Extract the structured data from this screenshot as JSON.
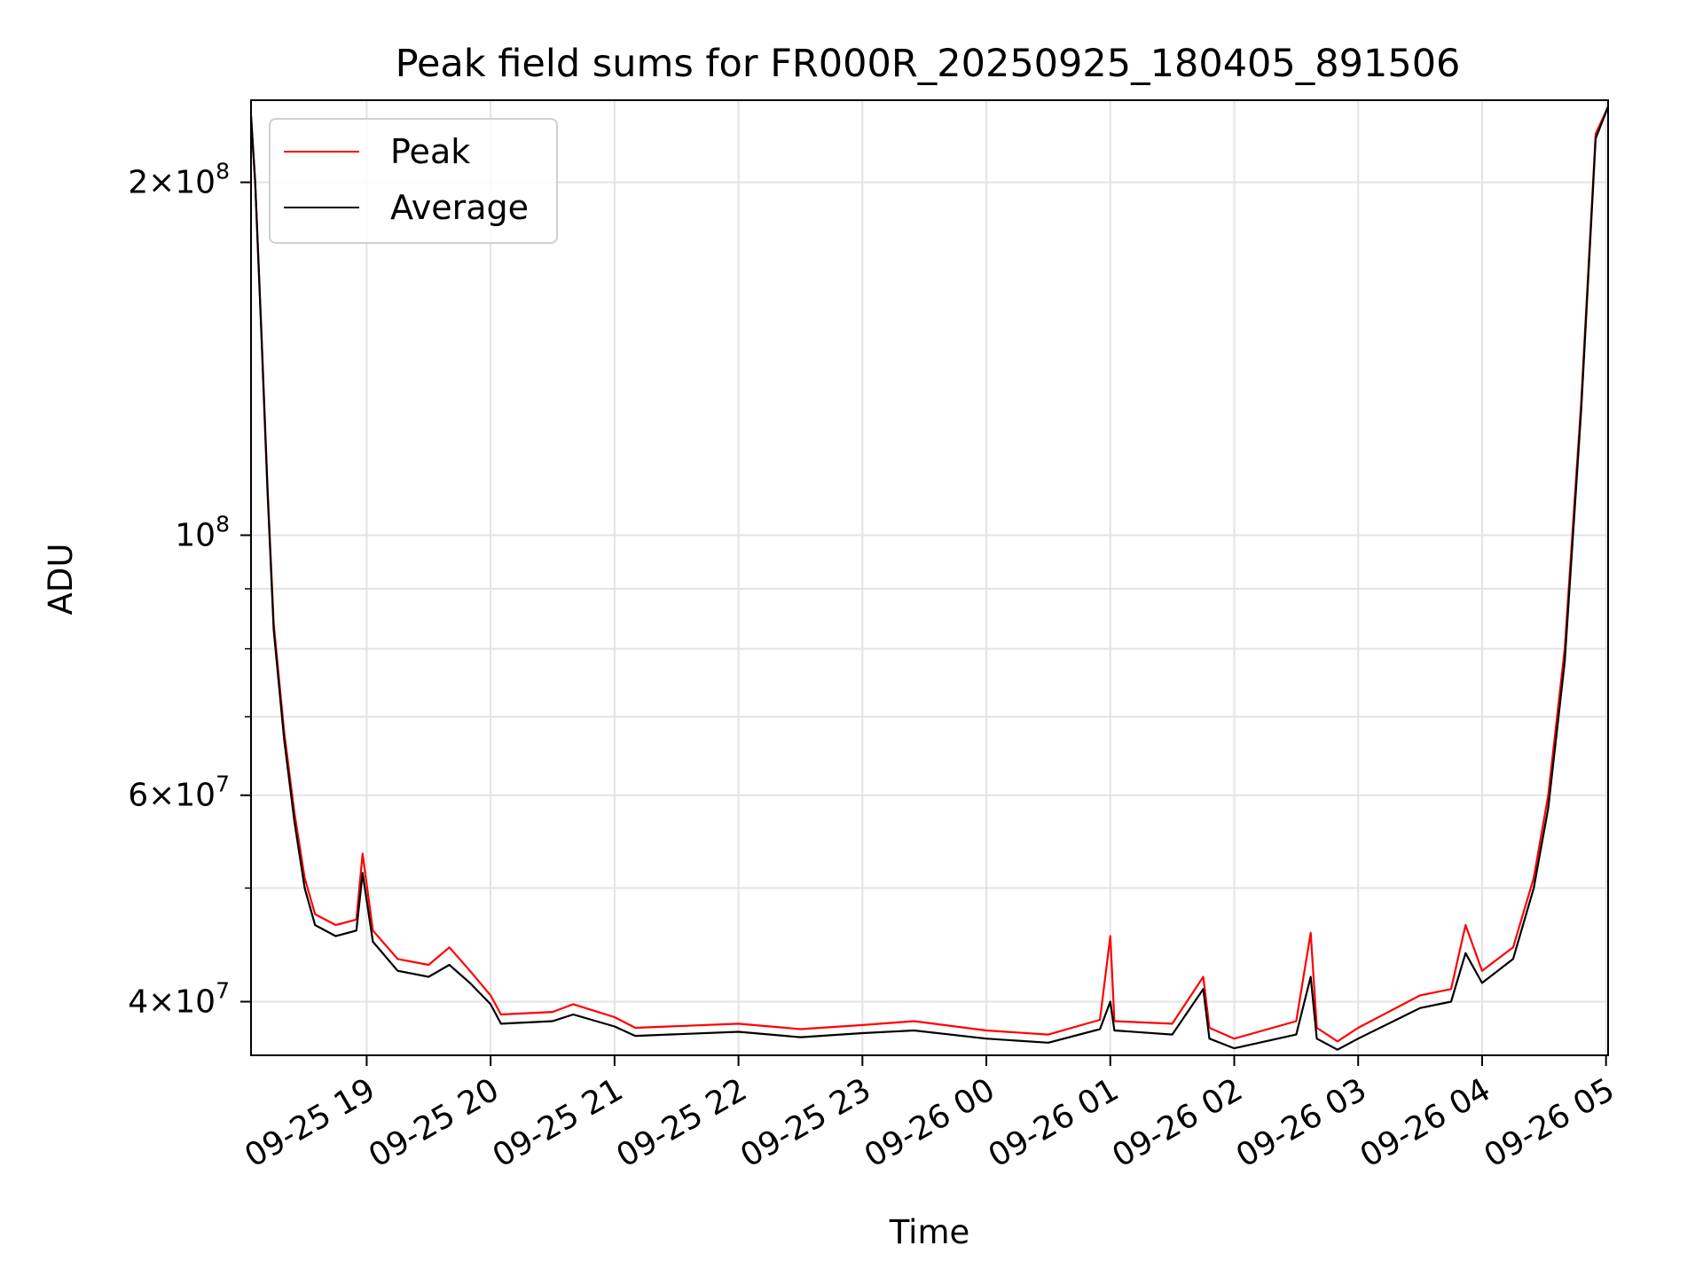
{
  "chart_data": {
    "type": "line",
    "title": "Peak field sums for FR000R_20250925_180405_891506",
    "xlabel": "Time",
    "ylabel": "ADU",
    "yscale": "log",
    "grid": true,
    "legend_position": "top-left",
    "xlim": [
      "2025-09-25 18:04",
      "2025-09-26 05:01"
    ],
    "ylim": [
      36000000,
      235000000
    ],
    "x_ticks": [
      "09-25 19",
      "09-25 20",
      "09-25 21",
      "09-25 22",
      "09-25 23",
      "09-26 00",
      "09-26 01",
      "09-26 02",
      "09-26 03",
      "09-26 04",
      "09-26 05"
    ],
    "y_ticks": [
      {
        "value": 40000000,
        "label_mantissa": "4×10",
        "label_exp": "7"
      },
      {
        "value": 60000000,
        "label_mantissa": "6×10",
        "label_exp": "7"
      },
      {
        "value": 100000000,
        "label_mantissa": "10",
        "label_exp": "8"
      },
      {
        "value": 200000000,
        "label_mantissa": "2×10",
        "label_exp": "8"
      }
    ],
    "series": [
      {
        "name": "Peak",
        "color": "#ff0000",
        "points": [
          [
            "2025-09-25 18:04",
            228000000
          ],
          [
            "2025-09-25 18:06",
            200000000
          ],
          [
            "2025-09-25 18:09",
            150000000
          ],
          [
            "2025-09-25 18:12",
            110000000
          ],
          [
            "2025-09-25 18:15",
            84000000
          ],
          [
            "2025-09-25 18:20",
            68000000
          ],
          [
            "2025-09-25 18:25",
            58000000
          ],
          [
            "2025-09-25 18:30",
            51000000
          ],
          [
            "2025-09-25 18:35",
            47500000
          ],
          [
            "2025-09-25 18:45",
            46500000
          ],
          [
            "2025-09-25 18:55",
            47000000
          ],
          [
            "2025-09-25 18:58",
            53500000
          ],
          [
            "2025-09-25 19:03",
            46000000
          ],
          [
            "2025-09-25 19:15",
            43500000
          ],
          [
            "2025-09-25 19:30",
            43000000
          ],
          [
            "2025-09-25 19:40",
            44500000
          ],
          [
            "2025-09-25 19:50",
            42500000
          ],
          [
            "2025-09-25 20:00",
            40500000
          ],
          [
            "2025-09-25 20:05",
            39000000
          ],
          [
            "2025-09-25 20:30",
            39200000
          ],
          [
            "2025-09-25 20:40",
            39800000
          ],
          [
            "2025-09-25 21:00",
            38800000
          ],
          [
            "2025-09-25 21:10",
            38000000
          ],
          [
            "2025-09-25 22:00",
            38300000
          ],
          [
            "2025-09-25 22:30",
            37900000
          ],
          [
            "2025-09-25 23:00",
            38200000
          ],
          [
            "2025-09-25 23:25",
            38500000
          ],
          [
            "2025-09-26 00:00",
            37800000
          ],
          [
            "2025-09-26 00:30",
            37500000
          ],
          [
            "2025-09-26 00:55",
            38600000
          ],
          [
            "2025-09-26 01:00",
            45500000
          ],
          [
            "2025-09-26 01:02",
            38500000
          ],
          [
            "2025-09-26 01:30",
            38300000
          ],
          [
            "2025-09-26 01:45",
            42000000
          ],
          [
            "2025-09-26 01:48",
            38000000
          ],
          [
            "2025-09-26 02:00",
            37200000
          ],
          [
            "2025-09-26 02:30",
            38500000
          ],
          [
            "2025-09-26 02:37",
            45800000
          ],
          [
            "2025-09-26 02:40",
            38000000
          ],
          [
            "2025-09-26 02:50",
            37000000
          ],
          [
            "2025-09-26 03:00",
            38000000
          ],
          [
            "2025-09-26 03:30",
            40500000
          ],
          [
            "2025-09-26 03:45",
            41000000
          ],
          [
            "2025-09-26 03:52",
            46500000
          ],
          [
            "2025-09-26 04:00",
            42500000
          ],
          [
            "2025-09-26 04:15",
            44500000
          ],
          [
            "2025-09-26 04:25",
            51000000
          ],
          [
            "2025-09-26 04:32",
            60000000
          ],
          [
            "2025-09-26 04:40",
            80000000
          ],
          [
            "2025-09-26 04:48",
            130000000
          ],
          [
            "2025-09-26 04:55",
            220000000
          ],
          [
            "2025-09-26 05:01",
            232000000
          ]
        ]
      },
      {
        "name": "Average",
        "color": "#000000",
        "points": [
          [
            "2025-09-25 18:04",
            228000000
          ],
          [
            "2025-09-25 18:06",
            200000000
          ],
          [
            "2025-09-25 18:09",
            149000000
          ],
          [
            "2025-09-25 18:12",
            109000000
          ],
          [
            "2025-09-25 18:15",
            83000000
          ],
          [
            "2025-09-25 18:20",
            67000000
          ],
          [
            "2025-09-25 18:25",
            57000000
          ],
          [
            "2025-09-25 18:30",
            50000000
          ],
          [
            "2025-09-25 18:35",
            46500000
          ],
          [
            "2025-09-25 18:45",
            45500000
          ],
          [
            "2025-09-25 18:55",
            46000000
          ],
          [
            "2025-09-25 18:58",
            51500000
          ],
          [
            "2025-09-25 19:03",
            45000000
          ],
          [
            "2025-09-25 19:15",
            42500000
          ],
          [
            "2025-09-25 19:30",
            42000000
          ],
          [
            "2025-09-25 19:40",
            43000000
          ],
          [
            "2025-09-25 19:50",
            41500000
          ],
          [
            "2025-09-25 20:00",
            39800000
          ],
          [
            "2025-09-25 20:05",
            38300000
          ],
          [
            "2025-09-25 20:30",
            38500000
          ],
          [
            "2025-09-25 20:40",
            39000000
          ],
          [
            "2025-09-25 21:00",
            38100000
          ],
          [
            "2025-09-25 21:10",
            37400000
          ],
          [
            "2025-09-25 22:00",
            37700000
          ],
          [
            "2025-09-25 22:30",
            37300000
          ],
          [
            "2025-09-25 23:00",
            37600000
          ],
          [
            "2025-09-25 23:25",
            37800000
          ],
          [
            "2025-09-26 00:00",
            37200000
          ],
          [
            "2025-09-26 00:30",
            36900000
          ],
          [
            "2025-09-26 00:55",
            37900000
          ],
          [
            "2025-09-26 01:00",
            40000000
          ],
          [
            "2025-09-26 01:02",
            37800000
          ],
          [
            "2025-09-26 01:30",
            37500000
          ],
          [
            "2025-09-26 01:45",
            41000000
          ],
          [
            "2025-09-26 01:48",
            37200000
          ],
          [
            "2025-09-26 02:00",
            36500000
          ],
          [
            "2025-09-26 02:30",
            37500000
          ],
          [
            "2025-09-26 02:37",
            42000000
          ],
          [
            "2025-09-26 02:40",
            37200000
          ],
          [
            "2025-09-26 02:50",
            36400000
          ],
          [
            "2025-09-26 03:00",
            37200000
          ],
          [
            "2025-09-26 03:30",
            39500000
          ],
          [
            "2025-09-26 03:45",
            40000000
          ],
          [
            "2025-09-26 03:52",
            44000000
          ],
          [
            "2025-09-26 04:00",
            41500000
          ],
          [
            "2025-09-26 04:15",
            43500000
          ],
          [
            "2025-09-26 04:25",
            50000000
          ],
          [
            "2025-09-26 04:32",
            58500000
          ],
          [
            "2025-09-26 04:40",
            78000000
          ],
          [
            "2025-09-26 04:48",
            128000000
          ],
          [
            "2025-09-26 04:55",
            218000000
          ],
          [
            "2025-09-26 05:01",
            232000000
          ]
        ]
      }
    ]
  }
}
